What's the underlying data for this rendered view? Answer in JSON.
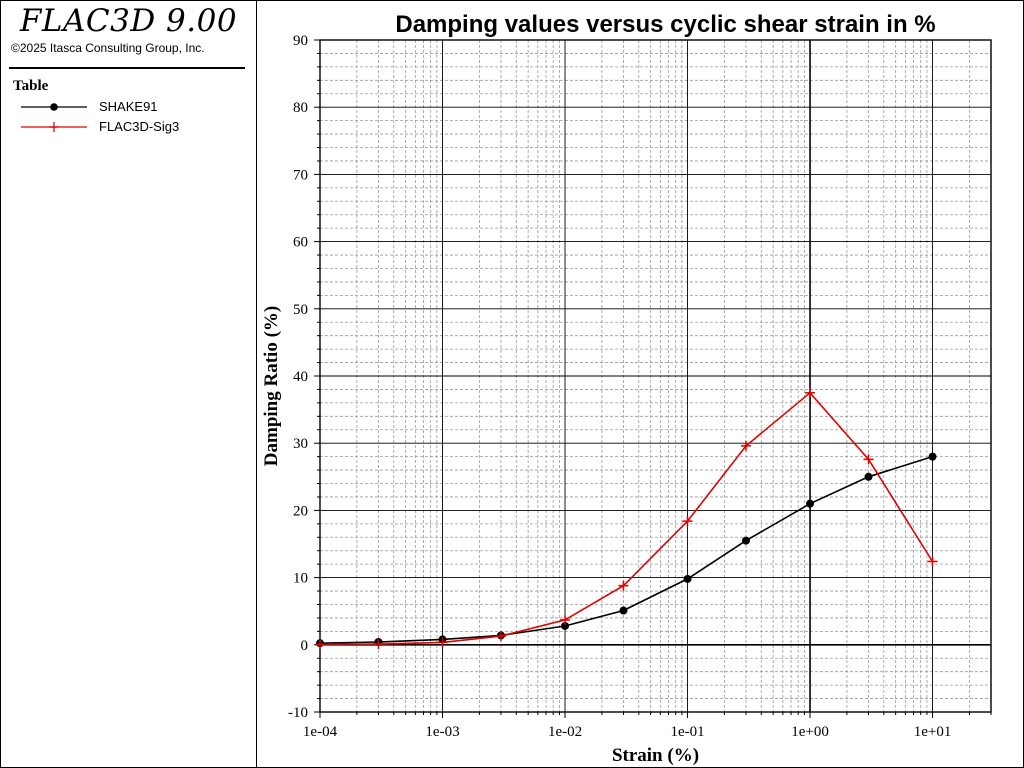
{
  "app": {
    "title": "FLAC3D 9.00",
    "copyright": "©2025 Itasca Consulting Group, Inc."
  },
  "legend": {
    "heading": "Table",
    "items": [
      {
        "label": "SHAKE91",
        "color": "#000000",
        "marker": "circle-icon"
      },
      {
        "label": "FLAC3D-Sig3",
        "color": "#e00000",
        "marker": "plus-icon"
      }
    ]
  },
  "chart_data": {
    "type": "line",
    "title": "Damping values versus cyclic shear strain in %",
    "xlabel": "Strain (%)",
    "ylabel": "Damping Ratio (%)",
    "xscale": "log",
    "xlim": [
      0.0001,
      30
    ],
    "ylim": [
      -10,
      90
    ],
    "xticks": [
      0.0001,
      0.001,
      0.01,
      0.1,
      1,
      10
    ],
    "xtick_labels": [
      "1e-04",
      "1e-03",
      "1e-02",
      "1e-01",
      "1e+00",
      "1e+01"
    ],
    "yticks": [
      -10,
      0,
      10,
      20,
      30,
      40,
      50,
      60,
      70,
      80,
      90
    ],
    "grid": true,
    "legend_position": "left panel",
    "series": [
      {
        "name": "SHAKE91",
        "color": "#000000",
        "marker": "circle",
        "x": [
          0.0001,
          0.0003,
          0.001,
          0.003,
          0.01,
          0.03,
          0.1,
          0.3,
          1,
          3,
          10
        ],
        "y": [
          0.24,
          0.42,
          0.8,
          1.4,
          2.8,
          5.1,
          9.8,
          15.5,
          21.0,
          25.0,
          28.0
        ]
      },
      {
        "name": "FLAC3D-Sig3",
        "color": "#e00000",
        "marker": "plus",
        "x": [
          0.0001,
          0.0003,
          0.001,
          0.003,
          0.01,
          0.03,
          0.1,
          0.3,
          1,
          3,
          10
        ],
        "y": [
          0.05,
          0.1,
          0.35,
          1.3,
          3.7,
          8.8,
          18.4,
          29.6,
          37.5,
          27.6,
          12.4
        ]
      }
    ]
  }
}
